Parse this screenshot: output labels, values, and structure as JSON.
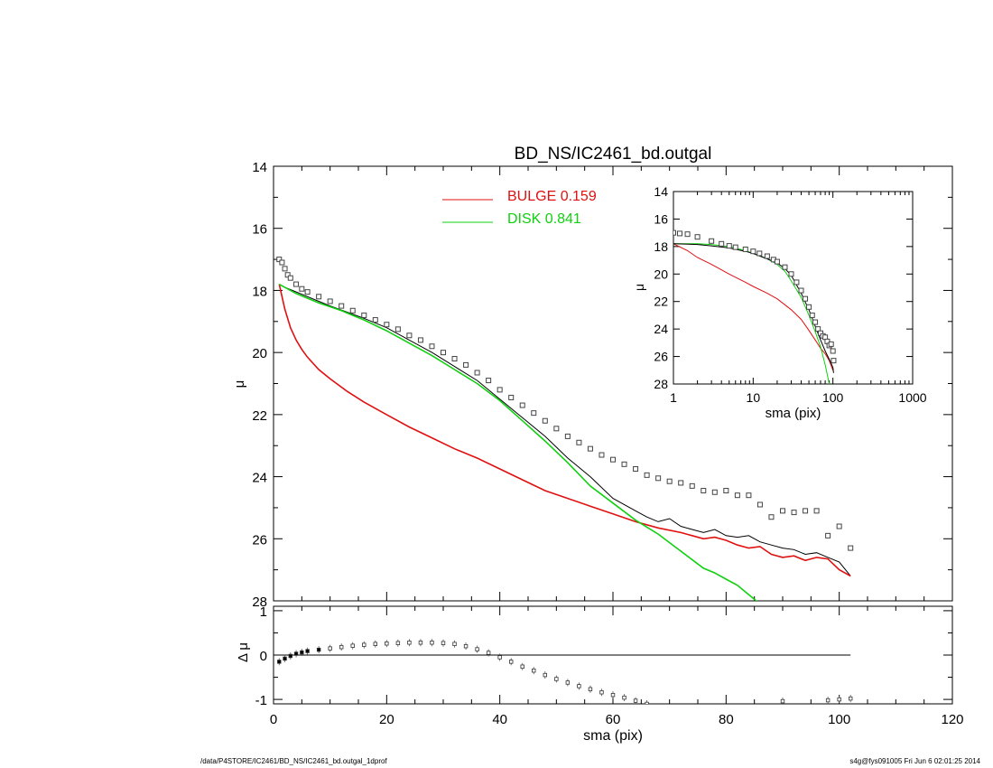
{
  "title": "BD_NS/IC2461_bd.outgal",
  "footer_left": "/data/P4STORE/IC2461/BD_NS/IC2461_bd.outgal_1dprof",
  "footer_right": "s4g@fys091005  Fri Jun  6 02:01:25 2014",
  "colors": {
    "bulge": "#e01010",
    "disk": "#10d010",
    "model": "#000000",
    "data": "#444444"
  },
  "chart_data": [
    {
      "panel": "main",
      "type": "line",
      "title": "BD_NS/IC2461_bd.outgal",
      "xlabel": "",
      "ylabel": "μ",
      "xlim": [
        0,
        120
      ],
      "ylim": [
        28,
        14
      ],
      "y_inverted": true,
      "xticks": [
        0,
        20,
        40,
        60,
        80,
        100,
        120
      ],
      "yticks": [
        14,
        16,
        18,
        20,
        22,
        24,
        26,
        28
      ],
      "legend": [
        {
          "label": "BULGE  0.159",
          "color": "#e01010"
        },
        {
          "label": "DISK  0.841",
          "color": "#10d010"
        }
      ],
      "series": [
        {
          "role": "model",
          "x": [
            1,
            2,
            4,
            6,
            8,
            10,
            13,
            16,
            20,
            24,
            28,
            32,
            36,
            40,
            44,
            48,
            52,
            56,
            60,
            64,
            66,
            68,
            70,
            72,
            74,
            76,
            78,
            80,
            82,
            84,
            86,
            88,
            90,
            92,
            94,
            96,
            98,
            100,
            102
          ],
          "y": [
            17.8,
            17.9,
            18.05,
            18.2,
            18.35,
            18.5,
            18.7,
            18.9,
            19.2,
            19.6,
            20.0,
            20.45,
            20.9,
            21.5,
            22.1,
            22.7,
            23.4,
            24.0,
            24.7,
            25.1,
            25.3,
            25.45,
            25.35,
            25.6,
            25.7,
            25.8,
            25.7,
            25.9,
            25.95,
            25.9,
            26.1,
            26.2,
            26.3,
            26.35,
            26.5,
            26.45,
            26.6,
            26.75,
            27.2
          ]
        },
        {
          "role": "bulge",
          "x": [
            1,
            2,
            3,
            4,
            5,
            6,
            8,
            10,
            13,
            16,
            20,
            24,
            28,
            32,
            36,
            40,
            44,
            48,
            52,
            56,
            60,
            64,
            68,
            72,
            74,
            76,
            78,
            80,
            82,
            84,
            86,
            88,
            90,
            92,
            94,
            96,
            98,
            100,
            102
          ],
          "y": [
            17.8,
            18.6,
            19.2,
            19.6,
            19.9,
            20.15,
            20.55,
            20.85,
            21.25,
            21.6,
            22.0,
            22.4,
            22.75,
            23.1,
            23.4,
            23.75,
            24.1,
            24.45,
            24.7,
            24.95,
            25.2,
            25.45,
            25.65,
            25.8,
            25.9,
            26.0,
            25.95,
            26.05,
            26.2,
            26.3,
            26.25,
            26.5,
            26.6,
            26.55,
            26.7,
            26.6,
            26.65,
            27.0,
            27.2
          ]
        },
        {
          "role": "disk",
          "x": [
            1,
            4,
            8,
            12,
            16,
            20,
            24,
            28,
            32,
            36,
            40,
            44,
            48,
            52,
            56,
            60,
            64,
            68,
            72,
            76,
            78,
            80,
            82,
            84,
            86
          ],
          "y": [
            17.8,
            18.1,
            18.4,
            18.65,
            18.95,
            19.3,
            19.7,
            20.1,
            20.55,
            21.0,
            21.55,
            22.2,
            22.85,
            23.55,
            24.3,
            24.85,
            25.4,
            25.85,
            26.4,
            26.95,
            27.1,
            27.3,
            27.5,
            27.8,
            28.1
          ]
        },
        {
          "role": "data",
          "x": [
            1,
            1.5,
            2,
            2.5,
            3,
            4,
            5,
            6,
            8,
            10,
            12,
            14,
            16,
            18,
            20,
            22,
            24,
            26,
            28,
            30,
            32,
            34,
            36,
            38,
            40,
            42,
            44,
            46,
            48,
            50,
            52,
            54,
            56,
            58,
            60,
            62,
            64,
            66,
            68,
            70,
            72,
            74,
            76,
            78,
            80,
            82,
            84,
            86,
            88,
            90,
            92,
            94,
            96,
            98,
            100,
            102
          ],
          "y": [
            17.0,
            17.1,
            17.3,
            17.5,
            17.6,
            17.8,
            17.95,
            18.05,
            18.2,
            18.35,
            18.5,
            18.65,
            18.8,
            18.95,
            19.1,
            19.25,
            19.45,
            19.6,
            19.8,
            20.0,
            20.2,
            20.4,
            20.65,
            20.9,
            21.2,
            21.45,
            21.7,
            21.95,
            22.2,
            22.45,
            22.7,
            22.9,
            23.1,
            23.3,
            23.45,
            23.6,
            23.75,
            23.95,
            24.05,
            24.15,
            24.2,
            24.3,
            24.45,
            24.5,
            24.45,
            24.6,
            24.6,
            24.9,
            25.3,
            25.1,
            25.15,
            25.1,
            25.1,
            25.9,
            25.6,
            26.3
          ]
        }
      ]
    },
    {
      "panel": "residual",
      "type": "scatter",
      "xlabel": "sma (pix)",
      "ylabel": "Δ μ",
      "xlim": [
        0,
        120
      ],
      "ylim": [
        -1.1,
        1.1
      ],
      "yticks": [
        -1,
        0,
        1
      ],
      "zero_line": [
        0,
        102
      ],
      "x": [
        1,
        2,
        3,
        4,
        5,
        6,
        8,
        10,
        12,
        14,
        16,
        18,
        20,
        22,
        24,
        26,
        28,
        30,
        32,
        34,
        36,
        38,
        40,
        42,
        44,
        46,
        48,
        50,
        52,
        54,
        56,
        58,
        60,
        62,
        64,
        66,
        90,
        98,
        100,
        102
      ],
      "y": [
        -0.15,
        -0.08,
        -0.02,
        0.03,
        0.06,
        0.09,
        0.12,
        0.15,
        0.18,
        0.21,
        0.23,
        0.25,
        0.26,
        0.27,
        0.28,
        0.28,
        0.28,
        0.27,
        0.25,
        0.2,
        0.13,
        0.05,
        -0.05,
        -0.15,
        -0.26,
        -0.35,
        -0.45,
        -0.54,
        -0.62,
        -0.7,
        -0.77,
        -0.84,
        -0.9,
        -0.96,
        -1.03,
        -1.1,
        -1.04,
        -1.02,
        -1.0,
        -0.98
      ]
    },
    {
      "panel": "inset",
      "type": "line",
      "xlabel": "sma (pix)",
      "ylabel": "μ",
      "xscale": "log",
      "xlim": [
        1,
        1000
      ],
      "ylim": [
        28,
        14
      ],
      "y_inverted": true,
      "xticks": [
        1,
        10,
        100,
        1000
      ],
      "yticks": [
        14,
        16,
        18,
        20,
        22,
        24,
        26,
        28
      ],
      "series": [
        {
          "role": "bulge",
          "x": [
            1,
            1.5,
            2,
            3,
            5,
            8,
            10,
            15,
            20,
            30,
            40,
            50,
            60,
            70,
            80,
            90,
            100
          ],
          "y": [
            17.8,
            18.3,
            18.8,
            19.3,
            20.0,
            20.6,
            20.9,
            21.4,
            21.8,
            22.6,
            23.3,
            24.1,
            24.8,
            25.4,
            25.8,
            26.3,
            27.0
          ]
        },
        {
          "role": "disk",
          "x": [
            1,
            2,
            3,
            5,
            8,
            10,
            15,
            20,
            25,
            30,
            40,
            50,
            60,
            70,
            80,
            90
          ],
          "y": [
            17.8,
            17.8,
            17.85,
            18.0,
            18.3,
            18.5,
            18.9,
            19.3,
            19.8,
            20.5,
            21.7,
            23.0,
            24.2,
            25.3,
            26.6,
            28.0
          ]
        },
        {
          "role": "model",
          "x": [
            1,
            2,
            3,
            5,
            8,
            10,
            15,
            20,
            25,
            30,
            40,
            50,
            60,
            70,
            80,
            90,
            100,
            102
          ],
          "y": [
            17.8,
            17.85,
            17.95,
            18.1,
            18.35,
            18.5,
            18.9,
            19.2,
            19.6,
            20.1,
            21.4,
            22.6,
            23.8,
            24.8,
            25.6,
            26.2,
            26.8,
            27.2
          ]
        },
        {
          "role": "data",
          "x": [
            1,
            1.2,
            1.5,
            2,
            3,
            4,
            5,
            6,
            8,
            10,
            12,
            15,
            18,
            20,
            25,
            30,
            35,
            40,
            45,
            50,
            55,
            60,
            65,
            70,
            75,
            80,
            85,
            90,
            95,
            100,
            102
          ],
          "y": [
            17.0,
            17.05,
            17.1,
            17.3,
            17.6,
            17.8,
            17.95,
            18.05,
            18.2,
            18.35,
            18.5,
            18.7,
            18.95,
            19.1,
            19.5,
            20.0,
            20.6,
            21.2,
            21.8,
            22.4,
            23.0,
            23.5,
            24.0,
            24.3,
            24.5,
            24.6,
            24.9,
            25.2,
            25.1,
            25.6,
            26.3
          ]
        }
      ]
    }
  ]
}
